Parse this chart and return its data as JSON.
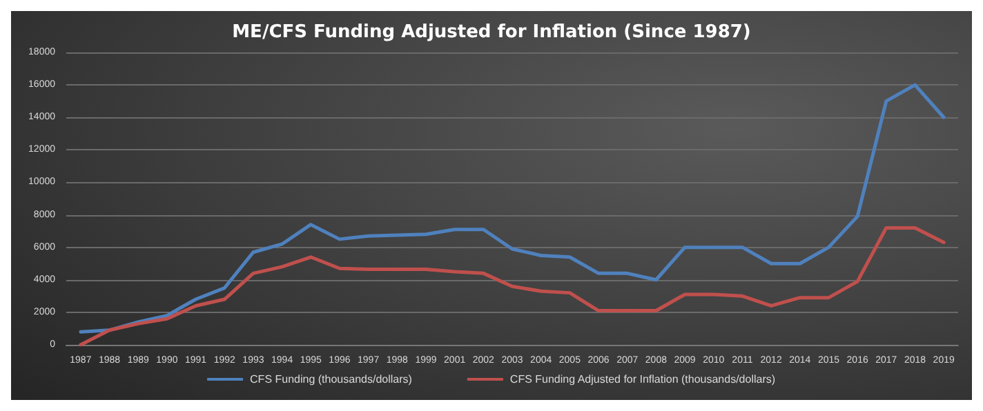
{
  "chart_data": {
    "type": "line",
    "title": "ME/CFS Funding Adjusted for Inflation (Since 1987)",
    "categories": [
      "1987",
      "1988",
      "1989",
      "1990",
      "1991",
      "1992",
      "1993",
      "1994",
      "1995",
      "1996",
      "1997",
      "1998",
      "1999",
      "2001",
      "2002",
      "2003",
      "2004",
      "2005",
      "2006",
      "2007",
      "2008",
      "2009",
      "2010",
      "2011",
      "2012",
      "2014",
      "2015",
      "2016",
      "2017",
      "2018",
      "2019"
    ],
    "series": [
      {
        "name": "CFS Funding (thousands/dollars)",
        "color": "#4f81bd",
        "values": [
          800,
          900,
          1400,
          1800,
          2800,
          3500,
          5700,
          6200,
          7400,
          6500,
          6700,
          6750,
          6800,
          7100,
          7100,
          5900,
          5500,
          5400,
          4400,
          4400,
          4000,
          6000,
          6000,
          6000,
          5000,
          5000,
          6000,
          7900,
          15000,
          16000,
          14000
        ]
      },
      {
        "name": "CFS Funding Adjusted for Inflation (thousands/dollars)",
        "color": "#c0504d",
        "values": [
          0,
          900,
          1300,
          1600,
          2400,
          2800,
          4400,
          4800,
          5400,
          4700,
          4650,
          4650,
          4650,
          4500,
          4400,
          3600,
          3300,
          3200,
          2100,
          2100,
          2100,
          3100,
          3100,
          3000,
          2400,
          2900,
          2900,
          3900,
          7200,
          7200,
          6300
        ]
      }
    ],
    "ylim": [
      0,
      18000
    ],
    "yticks": [
      0,
      2000,
      4000,
      6000,
      8000,
      10000,
      12000,
      14000,
      16000,
      18000
    ],
    "grid": "y",
    "legend": "bottom",
    "marker": "none",
    "line_style": "solid"
  }
}
